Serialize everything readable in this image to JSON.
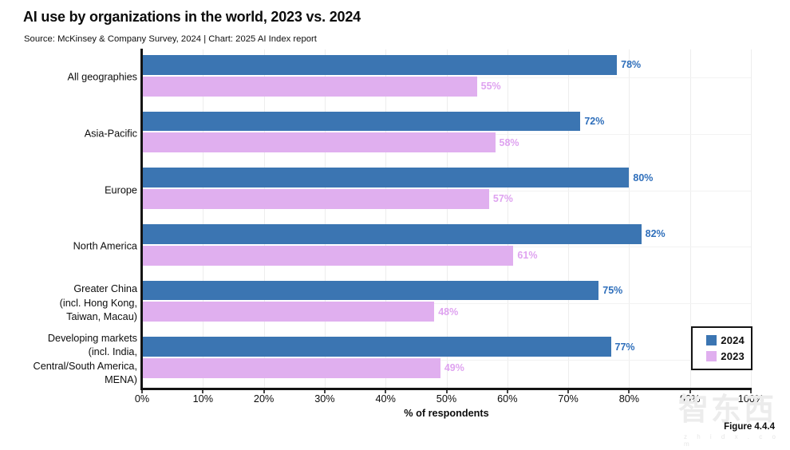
{
  "header": {
    "title": "AI use by organizations in the world, 2023 vs. 2024",
    "subtitle": "Source: McKinsey & Company Survey, 2024 | Chart: 2025 AI Index report"
  },
  "chart_data": {
    "type": "bar",
    "orientation": "horizontal",
    "title": "AI use by organizations in the world, 2023 vs. 2024",
    "categories": [
      "All geographies",
      "Asia-Pacific",
      "Europe",
      "North America",
      "Greater China (incl. Hong Kong, Taiwan, Macau)",
      "Developing markets (incl. India, Central/South America, MENA)"
    ],
    "category_lines": [
      [
        "All geographies"
      ],
      [
        "Asia-Pacific"
      ],
      [
        "Europe"
      ],
      [
        "North America"
      ],
      [
        "Greater China",
        "(incl. Hong Kong,",
        "Taiwan, Macau)"
      ],
      [
        "Developing markets",
        "(incl. India,",
        "Central/South America,",
        "MENA)"
      ]
    ],
    "series": [
      {
        "name": "2024",
        "color": "#3B75B2",
        "label_color": "#2F6FBB",
        "values": [
          78,
          72,
          80,
          82,
          75,
          77
        ]
      },
      {
        "name": "2023",
        "color": "#E0AFEF",
        "label_color": "#DFA3F0",
        "values": [
          55,
          58,
          57,
          61,
          48,
          49
        ]
      }
    ],
    "value_suffix": "%",
    "xlabel": "% of respondents",
    "xlim": [
      0,
      100
    ],
    "xticks": [
      "0%",
      "10%",
      "20%",
      "30%",
      "40%",
      "50%",
      "60%",
      "70%",
      "80%",
      "90%",
      "100%"
    ],
    "grid": true,
    "legend_position": "bottom-right"
  },
  "footer": {
    "figure_label": "Figure 4.4.4"
  },
  "watermark": {
    "text": "智东西",
    "subtext": "z h i d x . c o m"
  }
}
